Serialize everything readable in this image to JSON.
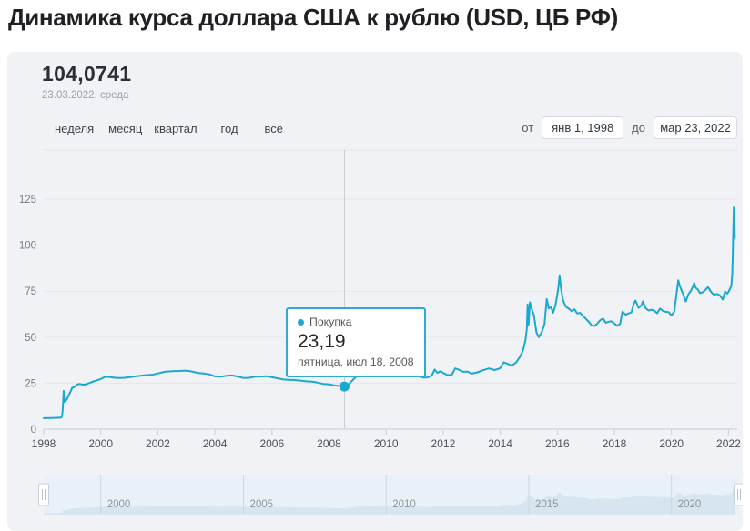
{
  "page": {
    "title": "Динамика курса доллара США к рублю (USD, ЦБ РФ)"
  },
  "header": {
    "value": "104,0741",
    "date": "23.03.2022, среда"
  },
  "range_tabs": {
    "items": [
      "неделя",
      "месяц",
      "квартал",
      "год",
      "всё"
    ]
  },
  "date_range": {
    "from_label": "от",
    "from_value": "янв 1, 1998",
    "to_label": "до",
    "to_value": "мар 23, 2022"
  },
  "tooltip": {
    "series_label": "Покупка",
    "value": "23,19",
    "date": "пятница, июл 18, 2008"
  },
  "colors": {
    "line": "#19a8cf",
    "tooltip_border": "#2fa9cd",
    "panel_bg": "#f1f2f5",
    "navigator_bg": "#e7f1f7",
    "navigator_area": "#d6e5f0"
  },
  "chart_data": {
    "type": "line",
    "title": "Динамика курса доллара США к рублю (USD, ЦБ РФ)",
    "xlabel": "",
    "ylabel": "",
    "x_range": [
      1998,
      2022.3
    ],
    "y_range": [
      0,
      125
    ],
    "y_ticks": [
      0,
      25,
      50,
      75,
      100,
      125
    ],
    "x_ticks": [
      1998,
      2000,
      2002,
      2004,
      2006,
      2008,
      2010,
      2012,
      2014,
      2016,
      2018,
      2020,
      2022
    ],
    "grid": true,
    "legend_position": "none",
    "navigator_ticks": [
      2000,
      2005,
      2010,
      2015,
      2020
    ],
    "selected_point": {
      "x": 2008.54,
      "y": 23.19,
      "label": "пятница, июл 18, 2008"
    },
    "series": [
      {
        "name": "Покупка",
        "points": [
          [
            1998.0,
            5.96
          ],
          [
            1998.1,
            6.0
          ],
          [
            1998.25,
            6.08
          ],
          [
            1998.4,
            6.15
          ],
          [
            1998.55,
            6.21
          ],
          [
            1998.62,
            6.27
          ],
          [
            1998.64,
            7.2
          ],
          [
            1998.66,
            9.5
          ],
          [
            1998.68,
            14.5
          ],
          [
            1998.7,
            20.8
          ],
          [
            1998.72,
            14.8
          ],
          [
            1998.74,
            16.2
          ],
          [
            1998.78,
            15.6
          ],
          [
            1998.82,
            16.4
          ],
          [
            1998.86,
            17.9
          ],
          [
            1998.9,
            19.2
          ],
          [
            1998.95,
            20.7
          ],
          [
            1999.0,
            22.6
          ],
          [
            1999.08,
            23.0
          ],
          [
            1999.16,
            24.1
          ],
          [
            1999.25,
            24.6
          ],
          [
            1999.33,
            24.3
          ],
          [
            1999.41,
            24.2
          ],
          [
            1999.5,
            24.3
          ],
          [
            1999.58,
            25.0
          ],
          [
            1999.66,
            25.4
          ],
          [
            1999.75,
            26.0
          ],
          [
            1999.83,
            26.3
          ],
          [
            1999.91,
            26.8
          ],
          [
            2000.0,
            27.2
          ],
          [
            2000.16,
            28.5
          ],
          [
            2000.33,
            28.3
          ],
          [
            2000.5,
            27.9
          ],
          [
            2000.66,
            27.8
          ],
          [
            2000.83,
            27.9
          ],
          [
            2001.0,
            28.2
          ],
          [
            2001.25,
            28.8
          ],
          [
            2001.5,
            29.2
          ],
          [
            2001.75,
            29.5
          ],
          [
            2001.9,
            29.9
          ],
          [
            2002.0,
            30.3
          ],
          [
            2002.25,
            31.2
          ],
          [
            2002.5,
            31.5
          ],
          [
            2002.75,
            31.6
          ],
          [
            2003.0,
            31.8
          ],
          [
            2003.2,
            31.3
          ],
          [
            2003.4,
            30.6
          ],
          [
            2003.6,
            30.3
          ],
          [
            2003.8,
            29.8
          ],
          [
            2004.0,
            28.7
          ],
          [
            2004.2,
            28.5
          ],
          [
            2004.4,
            29.0
          ],
          [
            2004.6,
            29.2
          ],
          [
            2004.8,
            28.6
          ],
          [
            2005.0,
            27.8
          ],
          [
            2005.2,
            27.9
          ],
          [
            2005.4,
            28.5
          ],
          [
            2005.6,
            28.6
          ],
          [
            2005.8,
            28.8
          ],
          [
            2006.0,
            28.2
          ],
          [
            2006.2,
            27.6
          ],
          [
            2006.4,
            27.0
          ],
          [
            2006.6,
            26.8
          ],
          [
            2006.8,
            26.7
          ],
          [
            2007.0,
            26.4
          ],
          [
            2007.2,
            26.0
          ],
          [
            2007.4,
            25.8
          ],
          [
            2007.6,
            25.3
          ],
          [
            2007.8,
            24.6
          ],
          [
            2008.0,
            24.4
          ],
          [
            2008.15,
            23.9
          ],
          [
            2008.3,
            23.6
          ],
          [
            2008.45,
            23.4
          ],
          [
            2008.54,
            23.19
          ],
          [
            2008.7,
            24.5
          ],
          [
            2008.85,
            27.0
          ],
          [
            2009.0,
            29.4
          ],
          [
            2009.08,
            36.2
          ],
          [
            2009.15,
            34.2
          ],
          [
            2009.25,
            33.4
          ],
          [
            2009.35,
            31.2
          ],
          [
            2009.45,
            31.0
          ],
          [
            2009.55,
            31.6
          ],
          [
            2009.65,
            31.8
          ],
          [
            2009.75,
            30.1
          ],
          [
            2009.85,
            29.3
          ],
          [
            2009.95,
            29.2
          ],
          [
            2010.0,
            29.9
          ],
          [
            2010.15,
            29.4
          ],
          [
            2010.3,
            29.3
          ],
          [
            2010.45,
            31.2
          ],
          [
            2010.6,
            30.4
          ],
          [
            2010.75,
            30.8
          ],
          [
            2010.9,
            31.1
          ],
          [
            2011.0,
            29.9
          ],
          [
            2011.15,
            28.7
          ],
          [
            2011.3,
            28.0
          ],
          [
            2011.45,
            28.1
          ],
          [
            2011.6,
            29.2
          ],
          [
            2011.7,
            32.4
          ],
          [
            2011.8,
            30.6
          ],
          [
            2011.9,
            31.5
          ],
          [
            2012.0,
            30.6
          ],
          [
            2012.15,
            29.4
          ],
          [
            2012.3,
            29.5
          ],
          [
            2012.42,
            33.0
          ],
          [
            2012.55,
            32.3
          ],
          [
            2012.7,
            31.2
          ],
          [
            2012.85,
            31.3
          ],
          [
            2013.0,
            30.2
          ],
          [
            2013.2,
            30.9
          ],
          [
            2013.4,
            32.0
          ],
          [
            2013.6,
            33.0
          ],
          [
            2013.8,
            32.1
          ],
          [
            2013.95,
            32.8
          ],
          [
            2014.0,
            33.2
          ],
          [
            2014.12,
            36.3
          ],
          [
            2014.25,
            35.6
          ],
          [
            2014.4,
            34.5
          ],
          [
            2014.55,
            36.1
          ],
          [
            2014.7,
            39.5
          ],
          [
            2014.8,
            43.0
          ],
          [
            2014.88,
            48.0
          ],
          [
            2014.93,
            54.5
          ],
          [
            2014.96,
            67.8
          ],
          [
            2014.985,
            56.5
          ],
          [
            2015.0,
            58.5
          ],
          [
            2015.04,
            68.9
          ],
          [
            2015.1,
            65.5
          ],
          [
            2015.18,
            62.0
          ],
          [
            2015.27,
            52.5
          ],
          [
            2015.35,
            50.0
          ],
          [
            2015.45,
            52.5
          ],
          [
            2015.55,
            57.0
          ],
          [
            2015.63,
            70.7
          ],
          [
            2015.7,
            65.5
          ],
          [
            2015.78,
            66.5
          ],
          [
            2015.85,
            63.2
          ],
          [
            2015.93,
            67.0
          ],
          [
            2016.0,
            73.0
          ],
          [
            2016.04,
            77.5
          ],
          [
            2016.08,
            83.6
          ],
          [
            2016.13,
            76.5
          ],
          [
            2016.2,
            70.0
          ],
          [
            2016.3,
            66.5
          ],
          [
            2016.4,
            65.5
          ],
          [
            2016.5,
            64.2
          ],
          [
            2016.6,
            65.1
          ],
          [
            2016.7,
            62.9
          ],
          [
            2016.8,
            63.2
          ],
          [
            2016.9,
            61.6
          ],
          [
            2017.0,
            60.0
          ],
          [
            2017.1,
            58.4
          ],
          [
            2017.2,
            56.4
          ],
          [
            2017.3,
            56.1
          ],
          [
            2017.4,
            57.3
          ],
          [
            2017.5,
            59.2
          ],
          [
            2017.6,
            60.1
          ],
          [
            2017.7,
            57.8
          ],
          [
            2017.8,
            58.4
          ],
          [
            2017.9,
            58.6
          ],
          [
            2018.0,
            57.4
          ],
          [
            2018.1,
            56.2
          ],
          [
            2018.2,
            57.2
          ],
          [
            2018.28,
            63.9
          ],
          [
            2018.4,
            62.2
          ],
          [
            2018.5,
            62.9
          ],
          [
            2018.6,
            63.5
          ],
          [
            2018.68,
            68.2
          ],
          [
            2018.74,
            69.9
          ],
          [
            2018.85,
            65.9
          ],
          [
            2018.95,
            67.4
          ],
          [
            2019.0,
            69.4
          ],
          [
            2019.1,
            65.6
          ],
          [
            2019.2,
            64.5
          ],
          [
            2019.3,
            64.9
          ],
          [
            2019.4,
            64.4
          ],
          [
            2019.5,
            63.0
          ],
          [
            2019.6,
            65.5
          ],
          [
            2019.7,
            64.3
          ],
          [
            2019.8,
            63.8
          ],
          [
            2019.9,
            63.6
          ],
          [
            2020.0,
            61.8
          ],
          [
            2020.1,
            63.9
          ],
          [
            2020.18,
            73.6
          ],
          [
            2020.24,
            80.9
          ],
          [
            2020.3,
            77.5
          ],
          [
            2020.4,
            73.8
          ],
          [
            2020.5,
            69.4
          ],
          [
            2020.6,
            73.4
          ],
          [
            2020.7,
            75.6
          ],
          [
            2020.8,
            79.4
          ],
          [
            2020.85,
            76.9
          ],
          [
            2020.93,
            75.8
          ],
          [
            2021.0,
            73.9
          ],
          [
            2021.1,
            74.4
          ],
          [
            2021.2,
            75.8
          ],
          [
            2021.28,
            77.2
          ],
          [
            2021.4,
            74.3
          ],
          [
            2021.5,
            73.0
          ],
          [
            2021.6,
            73.5
          ],
          [
            2021.7,
            72.6
          ],
          [
            2021.8,
            70.4
          ],
          [
            2021.88,
            74.8
          ],
          [
            2021.95,
            73.6
          ],
          [
            2022.0,
            74.5
          ],
          [
            2022.05,
            76.3
          ],
          [
            2022.1,
            77.9
          ],
          [
            2022.13,
            84.0
          ],
          [
            2022.15,
            95.0
          ],
          [
            2022.17,
            109.0
          ],
          [
            2022.185,
            120.4
          ],
          [
            2022.2,
            103.9
          ],
          [
            2022.21,
            113.0
          ],
          [
            2022.22,
            104.07
          ]
        ]
      }
    ]
  }
}
